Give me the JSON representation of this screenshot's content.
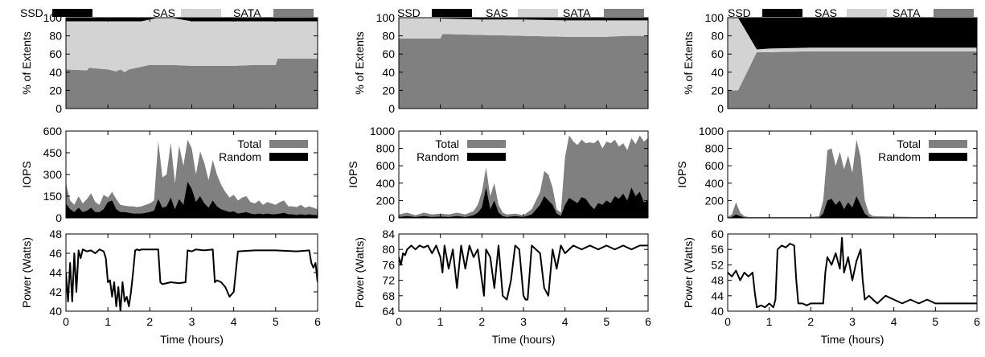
{
  "colors": {
    "ssd": "#000000",
    "sas": "#d3d3d3",
    "sata": "#808080",
    "total": "#808080",
    "random": "#000000",
    "power": "#000000"
  },
  "xaxis": {
    "label": "Time (hours)",
    "ticks": [
      0,
      1,
      2,
      3,
      4,
      5,
      6
    ],
    "range": [
      0,
      6
    ]
  },
  "chart_data": [
    {
      "type": "area",
      "panel": "storage-mix-1",
      "xlabel": "",
      "ylabel": "% of Extents",
      "ylim": [
        0,
        100
      ],
      "yticks": [
        0,
        20,
        40,
        60,
        80,
        100
      ],
      "legend": [
        "SSD",
        "SAS",
        "SATA"
      ],
      "x": [
        0,
        0.5,
        0.55,
        1.0,
        1.2,
        1.3,
        1.4,
        1.5,
        1.8,
        2.0,
        2.2,
        2.3,
        2.5,
        3.0,
        3.5,
        4.0,
        4.5,
        5.0,
        5.05,
        5.5,
        6.0
      ],
      "series": [
        {
          "name": "SATA",
          "values": [
            43,
            42,
            45,
            43,
            41,
            43,
            40,
            43,
            46,
            48,
            48,
            48,
            48,
            47,
            47,
            47,
            48,
            48,
            55,
            55,
            55
          ]
        },
        {
          "name": "SAS",
          "values": [
            53,
            54,
            51,
            53,
            55,
            53,
            56,
            53,
            50,
            50,
            52,
            52,
            52,
            49,
            49,
            49,
            48,
            48,
            41,
            41,
            41
          ]
        },
        {
          "name": "SSD",
          "values": [
            4,
            4,
            4,
            4,
            4,
            4,
            4,
            4,
            4,
            2,
            0,
            0,
            0,
            4,
            4,
            4,
            4,
            4,
            4,
            4,
            4
          ]
        }
      ]
    },
    {
      "type": "area",
      "panel": "storage-mix-2",
      "xlabel": "",
      "ylabel": "% of Extents",
      "ylim": [
        0,
        100
      ],
      "yticks": [
        0,
        20,
        40,
        60,
        80,
        100
      ],
      "legend": [
        "SSD",
        "SAS",
        "SATA"
      ],
      "x": [
        0,
        1.0,
        1.05,
        2.0,
        3.0,
        4.0,
        5.0,
        5.5,
        6.0
      ],
      "series": [
        {
          "name": "SATA",
          "values": [
            77,
            77,
            82,
            81,
            80,
            79,
            79,
            80,
            80
          ]
        },
        {
          "name": "SAS",
          "values": [
            23,
            23,
            17,
            17,
            18,
            18,
            18,
            17,
            17
          ]
        },
        {
          "name": "SSD",
          "values": [
            0,
            0,
            1,
            2,
            2,
            3,
            3,
            3,
            3
          ]
        }
      ]
    },
    {
      "type": "area",
      "panel": "storage-mix-3",
      "xlabel": "",
      "ylabel": "% of Extents",
      "ylim": [
        0,
        100
      ],
      "yticks": [
        0,
        20,
        40,
        60,
        80,
        100
      ],
      "legend": [
        "SSD",
        "SAS",
        "SATA"
      ],
      "x": [
        0,
        0.25,
        0.7,
        1.0,
        2.0,
        3.0,
        4.0,
        5.0,
        6.0
      ],
      "series": [
        {
          "name": "SATA",
          "values": [
            20,
            20,
            62,
            62,
            63,
            63,
            63,
            63,
            63
          ]
        },
        {
          "name": "SAS",
          "values": [
            80,
            80,
            3,
            4,
            4,
            4,
            4,
            4,
            4
          ]
        },
        {
          "name": "SSD",
          "values": [
            0,
            0,
            35,
            34,
            33,
            33,
            33,
            33,
            33
          ]
        }
      ]
    },
    {
      "type": "area",
      "panel": "iops-1",
      "xlabel": "",
      "ylabel": "IOPS",
      "ylim": [
        0,
        600
      ],
      "yticks": [
        0,
        150,
        300,
        450,
        600
      ],
      "legend": [
        "Total",
        "Random"
      ],
      "x": [
        0,
        0.1,
        0.2,
        0.3,
        0.4,
        0.5,
        0.6,
        0.7,
        0.8,
        0.9,
        1.0,
        1.1,
        1.2,
        1.3,
        1.4,
        1.5,
        1.6,
        1.7,
        1.8,
        1.9,
        2.0,
        2.1,
        2.2,
        2.3,
        2.4,
        2.5,
        2.6,
        2.7,
        2.8,
        2.9,
        3.0,
        3.1,
        3.2,
        3.3,
        3.4,
        3.5,
        3.6,
        3.7,
        3.8,
        3.9,
        4.0,
        4.1,
        4.2,
        4.3,
        4.4,
        4.5,
        4.6,
        4.7,
        4.8,
        4.9,
        5.0,
        5.1,
        5.2,
        5.3,
        5.4,
        5.5,
        5.6,
        5.7,
        5.8,
        5.9,
        6.0
      ],
      "series": [
        {
          "name": "Total",
          "values": [
            240,
            120,
            90,
            150,
            100,
            130,
            170,
            110,
            90,
            160,
            140,
            180,
            130,
            90,
            85,
            80,
            80,
            75,
            80,
            90,
            100,
            120,
            530,
            280,
            300,
            520,
            240,
            500,
            360,
            540,
            480,
            300,
            460,
            380,
            260,
            400,
            300,
            230,
            180,
            140,
            160,
            120,
            140,
            150,
            110,
            100,
            120,
            90,
            110,
            100,
            90,
            110,
            120,
            80,
            80,
            75,
            90,
            70,
            80,
            70,
            60
          ]
        },
        {
          "name": "Random",
          "values": [
            100,
            60,
            40,
            70,
            40,
            50,
            70,
            40,
            40,
            60,
            110,
            120,
            60,
            40,
            40,
            35,
            30,
            30,
            30,
            35,
            40,
            50,
            130,
            70,
            80,
            140,
            60,
            130,
            90,
            250,
            200,
            110,
            150,
            100,
            70,
            120,
            80,
            60,
            50,
            40,
            45,
            30,
            35,
            40,
            30,
            25,
            30,
            25,
            30,
            25,
            25,
            30,
            35,
            25,
            25,
            20,
            25,
            20,
            25,
            20,
            20
          ]
        }
      ]
    },
    {
      "type": "area",
      "panel": "iops-2",
      "xlabel": "",
      "ylabel": "IOPS",
      "ylim": [
        0,
        1000
      ],
      "yticks": [
        0,
        200,
        400,
        600,
        800,
        1000
      ],
      "legend": [
        "Total",
        "Random"
      ],
      "x": [
        0,
        0.2,
        0.4,
        0.6,
        0.8,
        1.0,
        1.2,
        1.4,
        1.6,
        1.8,
        1.9,
        2.0,
        2.1,
        2.2,
        2.3,
        2.4,
        2.5,
        2.6,
        2.8,
        3.0,
        3.2,
        3.4,
        3.5,
        3.6,
        3.7,
        3.8,
        3.9,
        4.0,
        4.1,
        4.2,
        4.3,
        4.4,
        4.5,
        4.6,
        4.7,
        4.8,
        4.9,
        5.0,
        5.1,
        5.2,
        5.3,
        5.4,
        5.5,
        5.6,
        5.7,
        5.8,
        5.9,
        6.0
      ],
      "series": [
        {
          "name": "Total",
          "values": [
            40,
            60,
            30,
            60,
            40,
            50,
            40,
            60,
            40,
            80,
            150,
            300,
            580,
            250,
            400,
            150,
            60,
            40,
            50,
            30,
            100,
            300,
            540,
            500,
            350,
            100,
            60,
            700,
            950,
            880,
            840,
            900,
            860,
            870,
            860,
            900,
            800,
            880,
            860,
            900,
            820,
            860,
            780,
            920,
            850,
            950,
            880,
            920
          ]
        },
        {
          "name": "Random",
          "values": [
            10,
            20,
            10,
            20,
            10,
            15,
            10,
            20,
            10,
            30,
            60,
            120,
            350,
            100,
            200,
            60,
            20,
            10,
            20,
            10,
            40,
            150,
            250,
            200,
            150,
            50,
            20,
            150,
            230,
            200,
            170,
            240,
            220,
            150,
            100,
            170,
            150,
            200,
            170,
            250,
            220,
            280,
            200,
            350,
            250,
            300,
            180,
            200
          ]
        }
      ]
    },
    {
      "type": "area",
      "panel": "iops-3",
      "xlabel": "",
      "ylabel": "IOPS",
      "ylim": [
        0,
        1000
      ],
      "yticks": [
        0,
        200,
        400,
        600,
        800,
        1000
      ],
      "legend": [
        "Total",
        "Random"
      ],
      "x": [
        0,
        0.1,
        0.2,
        0.3,
        0.4,
        0.5,
        1.0,
        1.5,
        2.0,
        2.2,
        2.3,
        2.4,
        2.5,
        2.6,
        2.7,
        2.8,
        2.9,
        3.0,
        3.1,
        3.2,
        3.3,
        3.4,
        3.5,
        4.0,
        4.5,
        5.0,
        6.0
      ],
      "series": [
        {
          "name": "Total",
          "values": [
            10,
            40,
            180,
            60,
            20,
            10,
            10,
            10,
            10,
            20,
            200,
            780,
            800,
            600,
            760,
            560,
            720,
            520,
            900,
            700,
            200,
            50,
            20,
            15,
            10,
            10,
            10
          ]
        },
        {
          "name": "Random",
          "values": [
            0,
            10,
            40,
            20,
            5,
            5,
            5,
            5,
            5,
            5,
            50,
            200,
            220,
            150,
            200,
            100,
            180,
            120,
            250,
            150,
            50,
            10,
            5,
            5,
            5,
            5,
            5
          ]
        }
      ]
    },
    {
      "type": "line",
      "panel": "power-1",
      "xlabel": "Time (hours)",
      "ylabel": "Power (Watts)",
      "ylim": [
        40,
        48
      ],
      "yticks": [
        40,
        42,
        44,
        46,
        48
      ],
      "x": [
        0,
        0.05,
        0.1,
        0.15,
        0.2,
        0.25,
        0.3,
        0.35,
        0.4,
        0.5,
        0.6,
        0.7,
        0.8,
        0.9,
        0.95,
        1.0,
        1.05,
        1.1,
        1.15,
        1.2,
        1.25,
        1.3,
        1.35,
        1.4,
        1.45,
        1.5,
        1.55,
        1.6,
        1.65,
        1.7,
        1.75,
        1.8,
        2.0,
        2.2,
        2.25,
        2.3,
        2.5,
        2.7,
        2.85,
        2.9,
        3.0,
        3.1,
        3.3,
        3.5,
        3.55,
        3.6,
        3.7,
        3.8,
        3.9,
        4.0,
        4.1,
        4.5,
        5.0,
        5.5,
        5.8,
        5.85,
        5.9,
        5.95,
        6.0
      ],
      "series": [
        {
          "name": "Power",
          "values": [
            44,
            41,
            45,
            41,
            46,
            42,
            46.3,
            45.5,
            46.4,
            46.2,
            46.3,
            46,
            46.4,
            46.2,
            45.5,
            43,
            43.2,
            41.5,
            43,
            40.5,
            42.5,
            40,
            43,
            41,
            41.5,
            40.5,
            42,
            44,
            46.3,
            46.4,
            46.3,
            46.4,
            46.4,
            46.4,
            43,
            42.8,
            43,
            42.9,
            43,
            46.3,
            46.2,
            46.4,
            46.3,
            46.4,
            43,
            43.2,
            43,
            42.5,
            41.5,
            42,
            46.2,
            46.3,
            46.3,
            46.2,
            46.3,
            45,
            44.5,
            45,
            43
          ]
        }
      ]
    },
    {
      "type": "line",
      "panel": "power-2",
      "xlabel": "Time (hours)",
      "ylabel": "Power (Watts)",
      "ylim": [
        64,
        84
      ],
      "yticks": [
        64,
        68,
        72,
        76,
        80,
        84
      ],
      "x": [
        0,
        0.05,
        0.1,
        0.15,
        0.2,
        0.3,
        0.4,
        0.5,
        0.6,
        0.7,
        0.8,
        0.9,
        1.0,
        1.05,
        1.1,
        1.2,
        1.3,
        1.4,
        1.5,
        1.6,
        1.7,
        1.8,
        1.9,
        2.0,
        2.05,
        2.1,
        2.2,
        2.3,
        2.4,
        2.5,
        2.6,
        2.7,
        2.8,
        2.9,
        3.0,
        3.05,
        3.1,
        3.2,
        3.3,
        3.4,
        3.5,
        3.6,
        3.7,
        3.8,
        3.9,
        4.0,
        4.2,
        4.4,
        4.6,
        4.8,
        5.0,
        5.2,
        5.4,
        5.6,
        5.8,
        6.0
      ],
      "series": [
        {
          "name": "Power",
          "values": [
            78,
            76,
            79,
            78.5,
            80,
            81,
            80,
            81,
            80.5,
            81,
            79,
            81,
            78,
            74,
            81,
            75,
            80,
            70,
            81,
            75,
            81,
            78,
            80,
            72,
            68,
            80,
            78,
            70,
            81,
            68,
            67,
            72,
            81,
            80,
            68,
            67,
            67,
            81,
            80,
            79,
            70,
            68,
            80,
            75,
            81,
            79,
            81,
            80,
            81,
            80,
            81,
            80,
            81,
            80,
            81,
            81
          ]
        }
      ]
    },
    {
      "type": "line",
      "panel": "power-3",
      "xlabel": "Time (hours)",
      "ylabel": "Power (Watts)",
      "ylim": [
        40,
        60
      ],
      "yticks": [
        40,
        44,
        48,
        52,
        56,
        60
      ],
      "x": [
        0,
        0.1,
        0.2,
        0.3,
        0.4,
        0.5,
        0.6,
        0.65,
        0.7,
        0.8,
        0.9,
        1.0,
        1.1,
        1.15,
        1.2,
        1.3,
        1.4,
        1.5,
        1.6,
        1.65,
        1.7,
        1.8,
        1.9,
        2.0,
        2.1,
        2.2,
        2.3,
        2.35,
        2.4,
        2.5,
        2.6,
        2.7,
        2.75,
        2.8,
        2.9,
        3.0,
        3.1,
        3.2,
        3.25,
        3.3,
        3.4,
        3.5,
        3.6,
        3.8,
        4.0,
        4.2,
        4.4,
        4.6,
        4.8,
        5.0,
        5.2,
        5.4,
        5.6,
        5.8,
        6.0
      ],
      "series": [
        {
          "name": "Power",
          "values": [
            50,
            49,
            50.5,
            48,
            50,
            49,
            50,
            45,
            41,
            41.5,
            41,
            42,
            41,
            43,
            56,
            57,
            56.5,
            57.5,
            57,
            48,
            42,
            42,
            41.5,
            42,
            42,
            42,
            42,
            50,
            54,
            52,
            55,
            51,
            59,
            50,
            54,
            48,
            53,
            56,
            48,
            43,
            44,
            43,
            42,
            44,
            43,
            42,
            43,
            42,
            43,
            42,
            42,
            42,
            42,
            42,
            42
          ]
        }
      ]
    }
  ]
}
